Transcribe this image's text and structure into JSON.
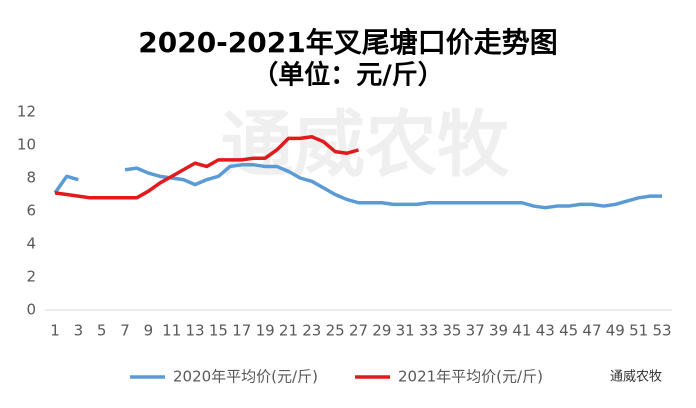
{
  "chart_data": {
    "type": "line",
    "title": "2020-2021年叉尾塘口价走势图",
    "subtitle": "（单位：元/斤）",
    "watermark": "通威农牧",
    "logo_text": "通威农牧",
    "x": [
      1,
      2,
      3,
      4,
      5,
      6,
      7,
      8,
      9,
      10,
      11,
      12,
      13,
      14,
      15,
      16,
      17,
      18,
      19,
      20,
      21,
      22,
      23,
      24,
      25,
      26,
      27,
      28,
      29,
      30,
      31,
      32,
      33,
      34,
      35,
      36,
      37,
      38,
      39,
      40,
      41,
      42,
      43,
      44,
      45,
      46,
      47,
      48,
      49,
      50,
      51,
      52,
      53
    ],
    "series": [
      {
        "name": "2020年平均价(元/斤)",
        "color": "#5b9bd5",
        "values": [
          7.1,
          8.1,
          7.9,
          null,
          null,
          null,
          8.5,
          8.6,
          8.3,
          8.1,
          8.0,
          7.9,
          7.6,
          7.9,
          8.1,
          8.7,
          8.8,
          8.8,
          8.7,
          8.7,
          8.4,
          8.0,
          7.8,
          7.4,
          7.0,
          6.7,
          6.5,
          6.5,
          6.5,
          6.4,
          6.4,
          6.4,
          6.5,
          6.5,
          6.5,
          6.5,
          6.5,
          6.5,
          6.5,
          6.5,
          6.5,
          6.3,
          6.2,
          6.3,
          6.3,
          6.4,
          6.4,
          6.3,
          6.4,
          6.6,
          6.8,
          6.9,
          6.9
        ]
      },
      {
        "name": "2021年平均价(元/斤)",
        "color": "#e31a1c",
        "values": [
          7.1,
          7.0,
          6.9,
          6.8,
          6.8,
          6.8,
          6.8,
          6.8,
          7.2,
          7.7,
          8.1,
          8.5,
          8.9,
          8.7,
          9.1,
          9.1,
          9.1,
          9.2,
          9.2,
          9.7,
          10.4,
          10.4,
          10.5,
          10.2,
          9.6,
          9.5,
          9.7,
          null,
          null,
          null,
          null,
          null,
          null,
          null,
          null,
          null,
          null,
          null,
          null,
          null,
          null,
          null,
          null,
          null,
          null,
          null,
          null,
          null,
          null,
          null,
          null,
          null,
          null
        ]
      }
    ],
    "xlim": [
      1,
      53
    ],
    "xticks": [
      1,
      3,
      5,
      7,
      9,
      11,
      13,
      15,
      17,
      19,
      21,
      23,
      25,
      27,
      29,
      31,
      33,
      35,
      37,
      39,
      41,
      43,
      45,
      47,
      49,
      51,
      53
    ],
    "ylim": [
      0,
      12
    ],
    "yticks": [
      0,
      2,
      4,
      6,
      8,
      10,
      12
    ],
    "grid": false
  }
}
